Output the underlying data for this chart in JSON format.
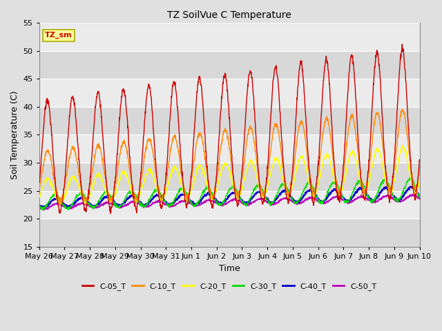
{
  "title": "TZ SoilVue C Temperature",
  "xlabel": "Time",
  "ylabel": "Soil Temperature (C)",
  "ylim": [
    15,
    55
  ],
  "legend_label": "TZ_sm",
  "series_colors": {
    "C-05_T": "#cc0000",
    "C-10_T": "#ff8800",
    "C-20_T": "#ffff00",
    "C-30_T": "#00dd00",
    "C-40_T": "#0000cc",
    "C-50_T": "#bb00bb"
  },
  "legend_colors": [
    "#cc0000",
    "#ff8800",
    "#ffff00",
    "#00dd00",
    "#0000cc",
    "#bb00bb"
  ],
  "legend_labels": [
    "C-05_T",
    "C-10_T",
    "C-20_T",
    "C-30_T",
    "C-40_T",
    "C-50_T"
  ],
  "background_color": "#e0e0e0",
  "plot_bg_color": "#ebebeb",
  "grid_color": "#ffffff",
  "annotation_box_color": "#ffff99",
  "annotation_box_edge": "#aaaa00",
  "tick_labels": [
    "May 26",
    "May 27",
    "May 28",
    "May 29",
    "May 30",
    "May 31",
    "Jun 1",
    "Jun 2",
    "Jun 3",
    "Jun 4",
    "Jun 5",
    "Jun 6",
    "Jun 7",
    "Jun 8",
    "Jun 9",
    "Jun 10"
  ],
  "yticks": [
    15,
    20,
    25,
    30,
    35,
    40,
    45,
    50,
    55
  ]
}
